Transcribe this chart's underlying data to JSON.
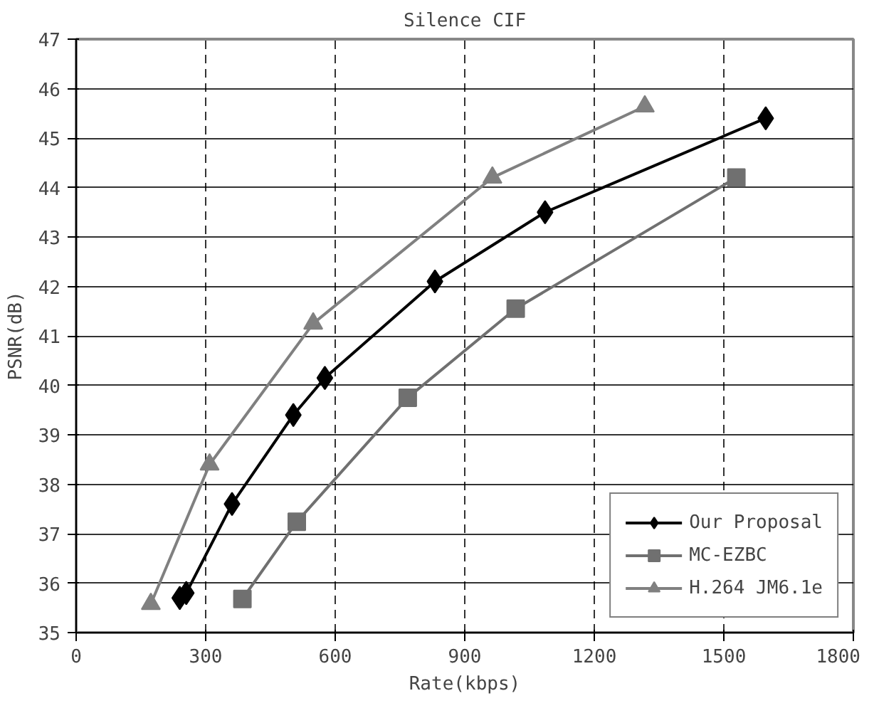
{
  "chart_data": {
    "type": "line",
    "title": "Silence CIF",
    "xlabel": "Rate(kbps)",
    "ylabel": "PSNR(dB)",
    "xlim": [
      0,
      1800
    ],
    "xticks": [
      0,
      300,
      600,
      900,
      1200,
      1500,
      1800
    ],
    "ylim": [
      35,
      47
    ],
    "yticks": [
      35,
      36,
      37,
      38,
      39,
      40,
      41,
      42,
      43,
      44,
      45,
      46,
      47
    ],
    "grid": true,
    "legend": "bottom right",
    "series": [
      {
        "name": "Our Proposal",
        "color": "#000000",
        "marker": "diamond",
        "x": [
          240,
          255,
          361,
          503,
          576,
          831,
          1086,
          1597
        ],
        "values": [
          35.7,
          35.8,
          37.6,
          39.4,
          40.15,
          42.1,
          43.5,
          45.4
        ]
      },
      {
        "name": "MC-EZBC",
        "color": "#707070",
        "marker": "square",
        "x": [
          385,
          511,
          768,
          1018,
          1529
        ],
        "values": [
          35.68,
          37.24,
          39.75,
          41.55,
          44.2
        ]
      },
      {
        "name": "H.264 JM6.1e",
        "color": "#808080",
        "marker": "triangle",
        "x": [
          173,
          309,
          549,
          964,
          1317
        ],
        "values": [
          35.58,
          38.4,
          41.25,
          44.2,
          45.64
        ]
      }
    ]
  }
}
